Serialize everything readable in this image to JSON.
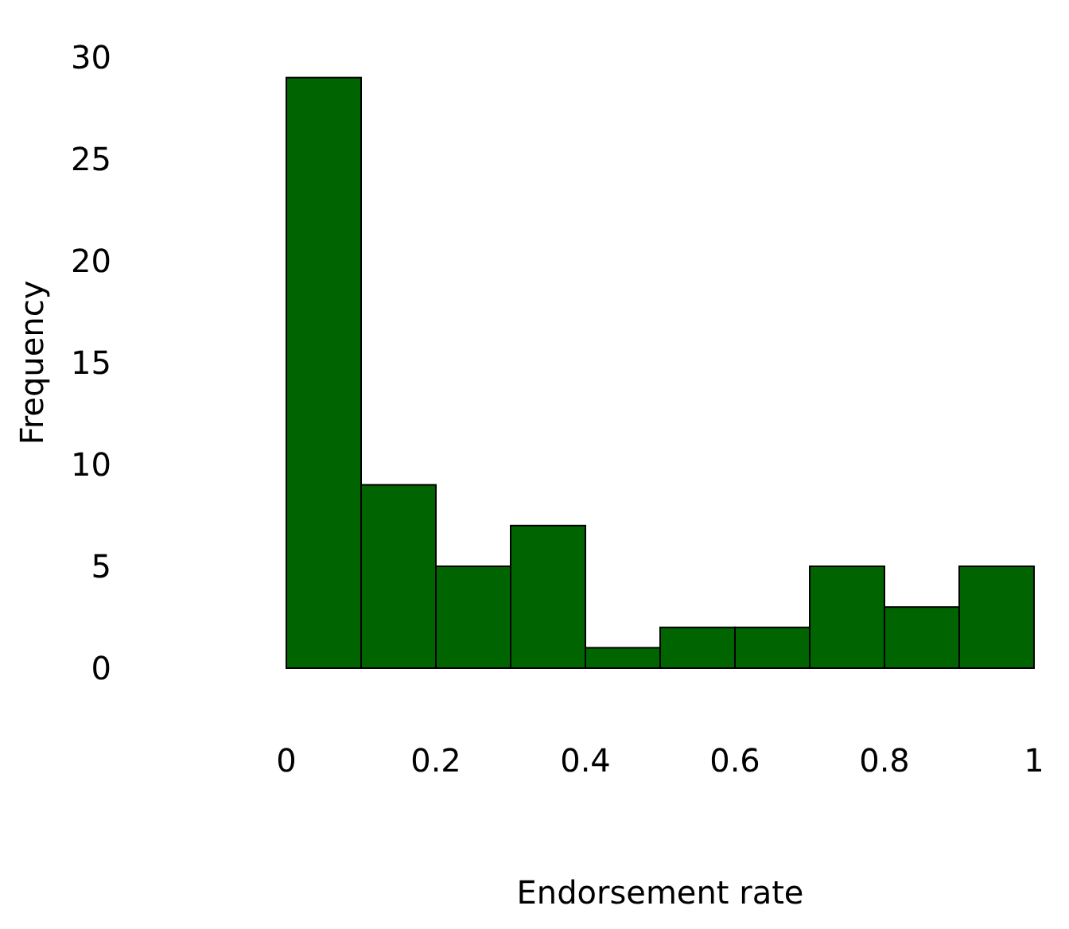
{
  "chart_data": {
    "type": "histogram",
    "xlabel": "Endorsement rate",
    "ylabel": "Frequency",
    "bins": [
      0,
      0.1,
      0.2,
      0.3,
      0.4,
      0.5,
      0.6,
      0.7,
      0.8,
      0.9,
      1
    ],
    "values": [
      29,
      9,
      5,
      7,
      1,
      2,
      2,
      5,
      3,
      5
    ],
    "color": "#006400",
    "xlim": [
      0,
      1
    ],
    "xticks": [
      0,
      0.2,
      0.4,
      0.6,
      0.8,
      1
    ],
    "ylim": [
      0,
      30
    ],
    "yticks": [
      0,
      5,
      10,
      15,
      20,
      25,
      30
    ],
    "grid": false
  }
}
